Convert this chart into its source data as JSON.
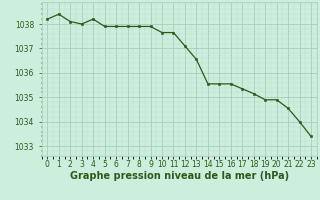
{
  "x": [
    0,
    1,
    2,
    3,
    4,
    5,
    6,
    7,
    8,
    9,
    10,
    11,
    12,
    13,
    14,
    15,
    16,
    17,
    18,
    19,
    20,
    21,
    22,
    23
  ],
  "y": [
    1038.2,
    1038.4,
    1038.1,
    1038.0,
    1038.2,
    1037.9,
    1037.9,
    1037.9,
    1037.9,
    1037.9,
    1037.65,
    1037.65,
    1037.1,
    1036.55,
    1035.55,
    1035.55,
    1035.55,
    1035.35,
    1035.15,
    1034.9,
    1034.9,
    1034.55,
    1034.0,
    1033.4
  ],
  "line_color": "#2d5a1b",
  "marker_color": "#2d5a1b",
  "bg_color": "#cceedd",
  "grid_major_color": "#aaccbb",
  "grid_minor_color": "#bbddcc",
  "xlabel": "Graphe pression niveau de la mer (hPa)",
  "xlabel_fontsize": 7,
  "ylabel_ticks": [
    1033,
    1034,
    1035,
    1036,
    1037,
    1038
  ],
  "ylim": [
    1032.6,
    1038.9
  ],
  "xlim": [
    -0.5,
    23.5
  ],
  "xtick_labels": [
    "0",
    "1",
    "2",
    "3",
    "4",
    "5",
    "6",
    "7",
    "8",
    "9",
    "10",
    "11",
    "12",
    "13",
    "14",
    "15",
    "16",
    "17",
    "18",
    "19",
    "20",
    "21",
    "22",
    "23"
  ],
  "tick_color": "#2d5a1b",
  "tick_fontsize": 5.5
}
